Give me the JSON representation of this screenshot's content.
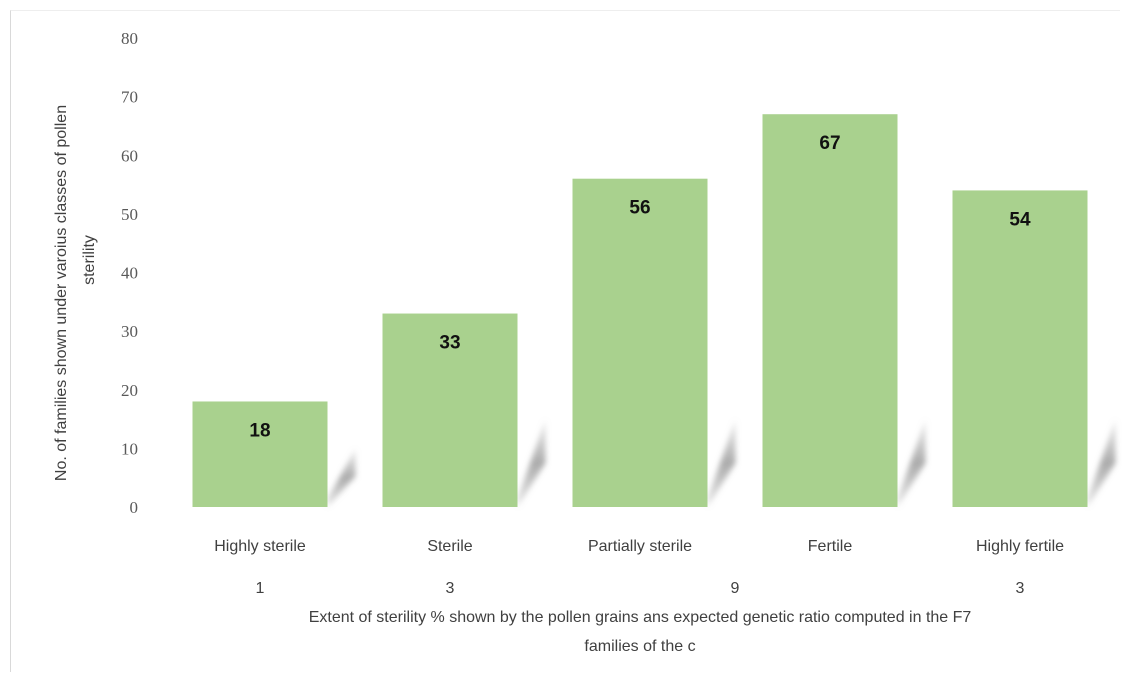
{
  "chart_data": {
    "type": "bar",
    "categories": [
      "Highly sterile",
      "Sterile",
      "Partially sterile",
      "Fertile",
      "Highly fertile"
    ],
    "values": [
      18,
      33,
      56,
      67,
      54
    ],
    "data_labels": [
      "18",
      "33",
      "56",
      "67",
      "54"
    ],
    "ratio_labels": [
      "1",
      "3",
      "9",
      "3"
    ],
    "title": "",
    "xlabel_lines": [
      "Extent of sterility % shown by the pollen grains ans expected genetic ratio computed in the F7",
      "families of the c"
    ],
    "ylabel_lines": [
      "No. of families shown under varoius classes of pollen",
      "sterility"
    ],
    "ylim": [
      0,
      80
    ],
    "yticks": [
      0,
      10,
      20,
      30,
      40,
      50,
      60,
      70,
      80
    ],
    "grid": false,
    "legend": "none",
    "bar_color": "#a9d18e"
  }
}
